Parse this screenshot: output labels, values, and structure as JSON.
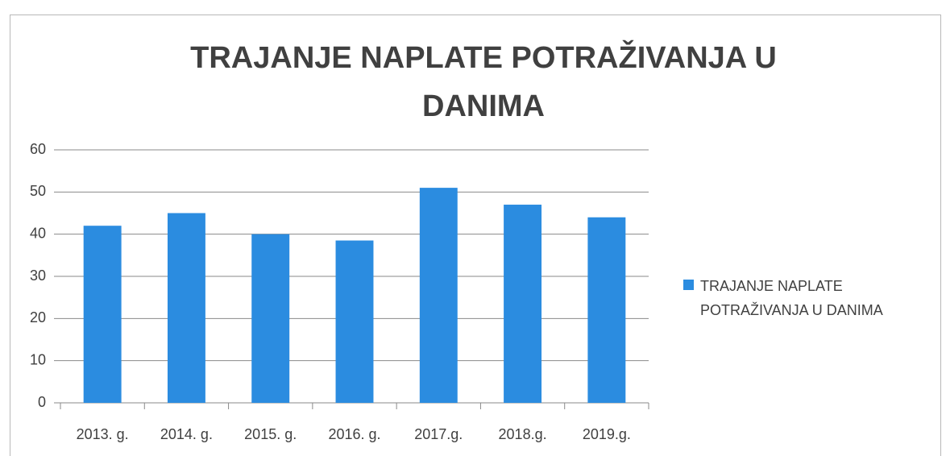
{
  "chart_data": {
    "type": "bar",
    "title": "TRAJANJE NAPLATE POTRAŽIVANJA U DANIMA",
    "categories": [
      "2013. g.",
      "2014. g.",
      "2015. g.",
      "2016. g.",
      "2017.g.",
      "2018.g.",
      "2019.g."
    ],
    "series": [
      {
        "name": "TRAJANJE NAPLATE POTRAŽIVANJA U DANIMA",
        "color": "#2b8ce0",
        "values": [
          42,
          45,
          40,
          38.5,
          51,
          47,
          44
        ]
      }
    ],
    "ylim": [
      0,
      60
    ],
    "yticks": [
      0,
      10,
      20,
      30,
      40,
      50,
      60
    ],
    "grid": true,
    "legend": "right"
  }
}
